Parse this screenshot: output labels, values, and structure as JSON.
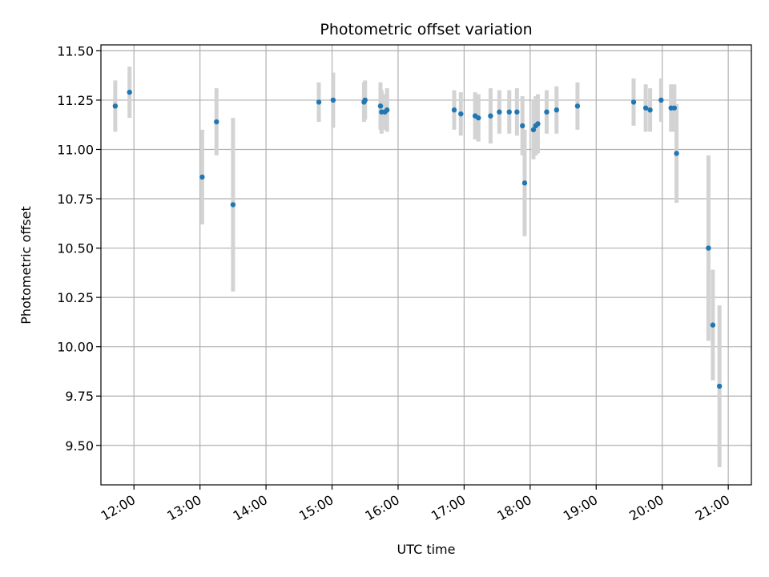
{
  "chart_data": {
    "type": "scatter",
    "title": "Photometric offset variation",
    "xlabel": "UTC time",
    "ylabel": "Photometric offset",
    "x_ticks": [
      "12:00",
      "13:00",
      "14:00",
      "15:00",
      "16:00",
      "17:00",
      "18:00",
      "19:00",
      "20:00",
      "21:00"
    ],
    "y_ticks": [
      "9.50",
      "9.75",
      "10.00",
      "10.25",
      "10.50",
      "10.75",
      "11.00",
      "11.25",
      "11.50"
    ],
    "xlim": [
      "11:30",
      "21:21"
    ],
    "ylim": [
      9.3,
      11.53
    ],
    "grid": true,
    "colors": {
      "point": "#1f77b4",
      "errorbar": "#d3d3d3",
      "grid": "#b0b0b0"
    },
    "points": [
      {
        "x": "11:43",
        "y": 11.22,
        "yerr": 0.13
      },
      {
        "x": "11:56",
        "y": 11.29,
        "yerr": 0.13
      },
      {
        "x": "13:02",
        "y": 10.86,
        "yerr": 0.24
      },
      {
        "x": "13:15",
        "y": 11.14,
        "yerr": 0.17
      },
      {
        "x": "13:30",
        "y": 10.72,
        "yerr": 0.44
      },
      {
        "x": "14:48",
        "y": 11.24,
        "yerr": 0.1
      },
      {
        "x": "15:01",
        "y": 11.25,
        "yerr": 0.14
      },
      {
        "x": "15:29",
        "y": 11.24,
        "yerr": 0.1
      },
      {
        "x": "15:30",
        "y": 11.25,
        "yerr": 0.1
      },
      {
        "x": "15:44",
        "y": 11.22,
        "yerr": 0.12
      },
      {
        "x": "15:45",
        "y": 11.19,
        "yerr": 0.11
      },
      {
        "x": "15:48",
        "y": 11.19,
        "yerr": 0.09
      },
      {
        "x": "15:50",
        "y": 11.2,
        "yerr": 0.11
      },
      {
        "x": "16:51",
        "y": 11.2,
        "yerr": 0.1
      },
      {
        "x": "16:57",
        "y": 11.18,
        "yerr": 0.11
      },
      {
        "x": "17:10",
        "y": 11.17,
        "yerr": 0.12
      },
      {
        "x": "17:13",
        "y": 11.16,
        "yerr": 0.12
      },
      {
        "x": "17:24",
        "y": 11.17,
        "yerr": 0.14
      },
      {
        "x": "17:32",
        "y": 11.19,
        "yerr": 0.11
      },
      {
        "x": "17:41",
        "y": 11.19,
        "yerr": 0.11
      },
      {
        "x": "17:48",
        "y": 11.19,
        "yerr": 0.12
      },
      {
        "x": "17:53",
        "y": 11.12,
        "yerr": 0.15
      },
      {
        "x": "17:55",
        "y": 10.83,
        "yerr": 0.27
      },
      {
        "x": "18:03",
        "y": 11.1,
        "yerr": 0.15
      },
      {
        "x": "18:05",
        "y": 11.12,
        "yerr": 0.15
      },
      {
        "x": "18:07",
        "y": 11.13,
        "yerr": 0.15
      },
      {
        "x": "18:15",
        "y": 11.19,
        "yerr": 0.11
      },
      {
        "x": "18:24",
        "y": 11.2,
        "yerr": 0.12
      },
      {
        "x": "18:43",
        "y": 11.22,
        "yerr": 0.12
      },
      {
        "x": "19:34",
        "y": 11.24,
        "yerr": 0.12
      },
      {
        "x": "19:45",
        "y": 11.21,
        "yerr": 0.12
      },
      {
        "x": "19:49",
        "y": 11.2,
        "yerr": 0.11
      },
      {
        "x": "19:59",
        "y": 11.25,
        "yerr": 0.11
      },
      {
        "x": "20:08",
        "y": 11.21,
        "yerr": 0.12
      },
      {
        "x": "20:11",
        "y": 11.21,
        "yerr": 0.12
      },
      {
        "x": "20:13",
        "y": 10.98,
        "yerr": 0.25
      },
      {
        "x": "20:42",
        "y": 10.5,
        "yerr": 0.47
      },
      {
        "x": "20:46",
        "y": 10.11,
        "yerr": 0.28
      },
      {
        "x": "20:52",
        "y": 9.8,
        "yerr": 0.41
      }
    ]
  }
}
